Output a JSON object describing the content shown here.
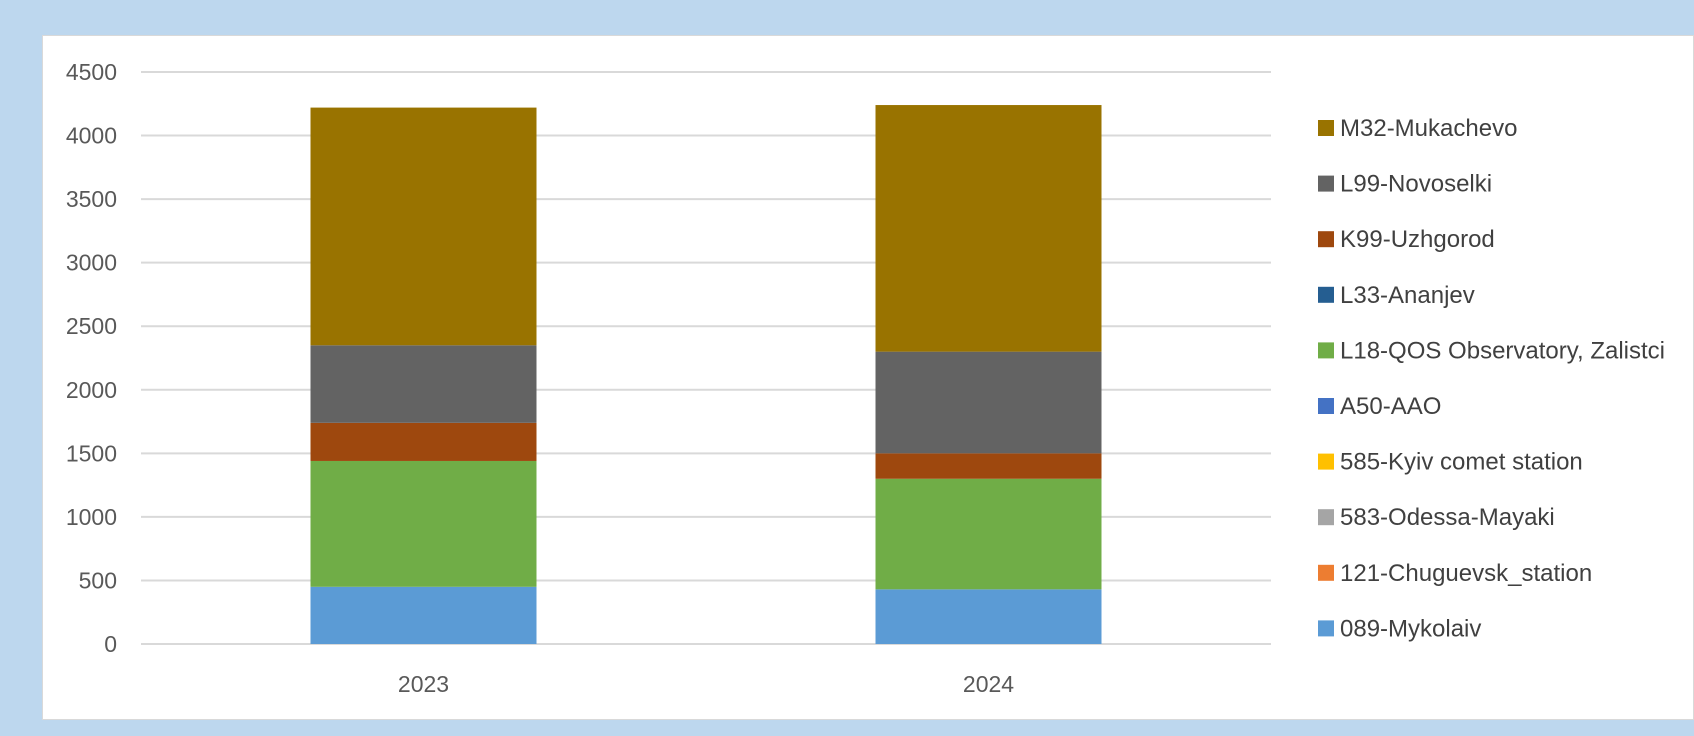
{
  "chart_data": {
    "type": "bar",
    "stacked": true,
    "categories": [
      "2023",
      "2024"
    ],
    "ylim": [
      0,
      4500
    ],
    "yticks": [
      0,
      500,
      1000,
      1500,
      2000,
      2500,
      3000,
      3500,
      4000,
      4500
    ],
    "grid": true,
    "legend_position": "right",
    "series": [
      {
        "name": "089-Mykolaiv",
        "color": "#5b9bd5",
        "values": [
          450,
          430
        ]
      },
      {
        "name": "121-Chuguevsk_station",
        "color": "#ed7d31",
        "values": [
          0,
          0
        ]
      },
      {
        "name": "583-Odessa-Mayaki",
        "color": "#a5a5a5",
        "values": [
          0,
          0
        ]
      },
      {
        "name": "585-Kyiv comet station",
        "color": "#ffc000",
        "values": [
          0,
          0
        ]
      },
      {
        "name": "A50-AAO",
        "color": "#4472c4",
        "values": [
          0,
          0
        ]
      },
      {
        "name": "L18-QOS Observatory, Zalistci",
        "color": "#70ad47",
        "values": [
          990,
          870
        ]
      },
      {
        "name": "L33-Ananjev",
        "color": "#255e91",
        "values": [
          0,
          0
        ]
      },
      {
        "name": "K99-Uzhgorod",
        "color": "#9e480e",
        "values": [
          300,
          200
        ]
      },
      {
        "name": "L99-Novoselki",
        "color": "#636363",
        "values": [
          610,
          800
        ]
      },
      {
        "name": "M32-Mukachevo",
        "color": "#997300",
        "values": [
          1870,
          1940
        ]
      }
    ]
  }
}
